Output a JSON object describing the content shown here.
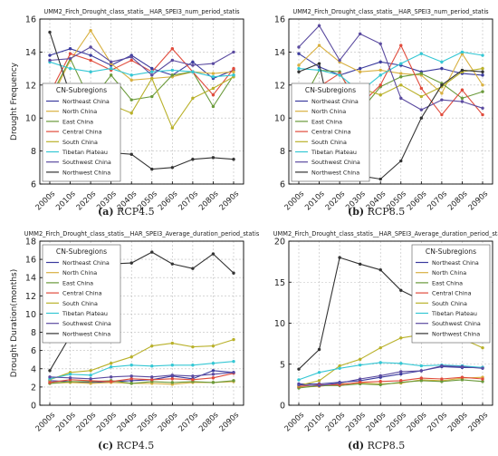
{
  "chart_data": [
    {
      "id": "a",
      "type": "line",
      "title": "UMM2_Firch_Drought_class_statis__HAR_SPEI3_num_period_statis",
      "ylabel": "Drought Frequency",
      "xlabel": "",
      "categories": [
        "2000s",
        "2010s",
        "2020s",
        "2030s",
        "2040s",
        "2050s",
        "2060s",
        "2070s",
        "2080s",
        "2090s"
      ],
      "ylim": [
        6,
        16
      ],
      "yticks": [
        6,
        8,
        10,
        12,
        14,
        16
      ],
      "grid": true,
      "legend_title": "CN-Subregions",
      "legend_position": "bottom-left",
      "series": [
        {
          "name": "Northeast China",
          "color": "#3b3b9e",
          "values": [
            13.8,
            14.2,
            13.8,
            13.2,
            13.8,
            13.0,
            12.6,
            13.4,
            12.4,
            12.9
          ]
        },
        {
          "name": "North China",
          "color": "#d8b040",
          "values": [
            11.0,
            13.5,
            15.3,
            13.3,
            12.3,
            12.4,
            12.5,
            12.8,
            12.7,
            12.8
          ]
        },
        {
          "name": "East China",
          "color": "#6a9a3a",
          "values": [
            11.2,
            13.6,
            11.0,
            12.6,
            11.1,
            11.3,
            12.6,
            12.8,
            10.7,
            12.6
          ]
        },
        {
          "name": "Central China",
          "color": "#e04b3c",
          "values": [
            11.5,
            13.9,
            13.5,
            12.9,
            13.5,
            12.8,
            14.2,
            12.8,
            11.4,
            13.0
          ]
        },
        {
          "name": "South China",
          "color": "#b9b12a",
          "values": [
            10.9,
            11.3,
            10.8,
            10.8,
            10.3,
            12.4,
            9.4,
            11.2,
            11.8,
            12.5
          ]
        },
        {
          "name": "Tibetan Plateau",
          "color": "#35c7d4",
          "values": [
            13.4,
            13.0,
            12.8,
            13.0,
            12.6,
            12.8,
            12.9,
            12.8,
            12.5,
            12.6
          ]
        },
        {
          "name": "Southwest China",
          "color": "#5b4ba0",
          "values": [
            13.5,
            13.6,
            14.3,
            13.4,
            13.7,
            12.6,
            13.5,
            13.2,
            13.3,
            14.0
          ]
        },
        {
          "name": "Northwest China",
          "color": "#333333",
          "values": [
            15.2,
            11.4,
            9.9,
            7.9,
            7.8,
            6.9,
            7.0,
            7.5,
            7.6,
            7.5
          ]
        }
      ]
    },
    {
      "id": "b",
      "type": "line",
      "title": "UMM2_Firch_Drought_class_statis__HAR_SPEI3_num_period_statis",
      "ylabel": "",
      "xlabel": "",
      "categories": [
        "2000s",
        "2010s",
        "2020s",
        "2030s",
        "2040s",
        "2050s",
        "2060s",
        "2070s",
        "2080s",
        "2090s"
      ],
      "ylim": [
        6,
        16
      ],
      "yticks": [
        6,
        8,
        10,
        12,
        14,
        16
      ],
      "grid": true,
      "legend_title": "CN-Subregions",
      "legend_position": "bottom-left",
      "series": [
        {
          "name": "Northeast China",
          "color": "#3b3b9e",
          "values": [
            13.9,
            13.1,
            12.6,
            13.0,
            13.4,
            13.2,
            12.8,
            13.0,
            12.7,
            12.6
          ]
        },
        {
          "name": "North China",
          "color": "#d8b040",
          "values": [
            13.2,
            14.4,
            13.4,
            12.8,
            12.9,
            12.7,
            12.6,
            11.5,
            13.9,
            12.0
          ]
        },
        {
          "name": "East China",
          "color": "#6a9a3a",
          "values": [
            10.6,
            12.9,
            12.8,
            10.4,
            11.9,
            12.5,
            12.7,
            12.1,
            11.2,
            11.6
          ]
        },
        {
          "name": "Central China",
          "color": "#e04b3c",
          "values": [
            10.9,
            11.9,
            12.7,
            10.8,
            12.0,
            14.4,
            11.8,
            10.2,
            11.7,
            10.2
          ]
        },
        {
          "name": "South China",
          "color": "#b9b12a",
          "values": [
            10.8,
            10.6,
            8.7,
            11.8,
            11.4,
            12.0,
            11.3,
            11.9,
            12.8,
            13.0
          ]
        },
        {
          "name": "Tibetan Plateau",
          "color": "#35c7d4",
          "values": [
            13.0,
            12.9,
            12.6,
            11.6,
            12.6,
            13.3,
            13.9,
            13.4,
            14.0,
            13.8
          ]
        },
        {
          "name": "Southwest China",
          "color": "#5b4ba0",
          "values": [
            14.3,
            15.6,
            13.5,
            15.1,
            14.5,
            11.2,
            10.5,
            11.1,
            11.0,
            10.6
          ]
        },
        {
          "name": "Northwest China",
          "color": "#333333",
          "values": [
            12.8,
            13.3,
            7.6,
            6.5,
            6.3,
            7.4,
            10.0,
            12.0,
            12.9,
            12.8
          ]
        }
      ]
    },
    {
      "id": "c",
      "type": "line",
      "title": "UMM2_Firch_Drought_class_statis__HAR_SPEI3_Average_duration_period_statis",
      "ylabel": "Drought Duration(months)",
      "xlabel": "",
      "categories": [
        "2000s",
        "2010s",
        "2020s",
        "2030s",
        "2040s",
        "2050s",
        "2060s",
        "2070s",
        "2080s",
        "2090s"
      ],
      "ylim": [
        0,
        18
      ],
      "yticks": [
        0,
        2,
        4,
        6,
        8,
        10,
        12,
        14,
        16,
        18
      ],
      "grid": true,
      "legend_title": "CN-Subregions",
      "legend_position": "top-left",
      "series": [
        {
          "name": "Northeast China",
          "color": "#3b3b9e",
          "values": [
            2.7,
            2.6,
            2.5,
            2.6,
            2.7,
            2.8,
            3.2,
            2.9,
            3.8,
            3.6
          ]
        },
        {
          "name": "North China",
          "color": "#d8b040",
          "values": [
            2.4,
            2.5,
            2.4,
            2.5,
            2.4,
            2.4,
            2.3,
            2.5,
            2.5,
            2.6
          ]
        },
        {
          "name": "East China",
          "color": "#6a9a3a",
          "values": [
            2.4,
            2.6,
            2.6,
            2.7,
            2.4,
            2.6,
            2.5,
            2.6,
            2.5,
            2.7
          ]
        },
        {
          "name": "Central China",
          "color": "#e04b3c",
          "values": [
            2.5,
            2.8,
            2.7,
            2.6,
            2.9,
            2.8,
            2.9,
            2.8,
            3.0,
            3.5
          ]
        },
        {
          "name": "South China",
          "color": "#b9b12a",
          "values": [
            2.8,
            3.6,
            3.8,
            4.6,
            5.3,
            6.5,
            6.8,
            6.4,
            6.5,
            7.2
          ]
        },
        {
          "name": "Tibetan Plateau",
          "color": "#35c7d4",
          "values": [
            2.9,
            3.4,
            3.3,
            4.2,
            4.4,
            4.3,
            4.4,
            4.4,
            4.6,
            4.8
          ]
        },
        {
          "name": "Southwest China",
          "color": "#5b4ba0",
          "values": [
            3.1,
            3.0,
            2.9,
            3.1,
            3.2,
            3.1,
            3.3,
            3.2,
            3.4,
            3.6
          ]
        },
        {
          "name": "Northwest China",
          "color": "#333333",
          "values": [
            3.8,
            7.6,
            12.2,
            15.5,
            15.6,
            16.8,
            15.5,
            15.0,
            16.6,
            14.5
          ]
        }
      ]
    },
    {
      "id": "d",
      "type": "line",
      "title": "UMM2_Firch_Drought_class_statis__HAR_SPEI3_Average_duration_period_statis",
      "ylabel": "",
      "xlabel": "",
      "categories": [
        "2000s",
        "2010s",
        "2020s",
        "2030s",
        "2040s",
        "2050s",
        "2060s",
        "2070s",
        "2080s",
        "2090s"
      ],
      "ylim": [
        0,
        20
      ],
      "yticks": [
        0,
        5,
        10,
        15,
        20
      ],
      "grid": true,
      "legend_title": "CN-Subregions",
      "legend_position": "top-right",
      "series": [
        {
          "name": "Northeast China",
          "color": "#3b3b9e",
          "values": [
            2.6,
            2.6,
            2.8,
            3.0,
            3.4,
            3.8,
            4.2,
            4.7,
            4.6,
            4.6
          ]
        },
        {
          "name": "North China",
          "color": "#d8b040",
          "values": [
            2.2,
            2.3,
            2.6,
            2.7,
            2.6,
            2.7,
            3.1,
            3.0,
            3.3,
            3.4
          ]
        },
        {
          "name": "East China",
          "color": "#6a9a3a",
          "values": [
            2.1,
            2.4,
            2.4,
            2.6,
            2.5,
            2.8,
            3.0,
            2.9,
            3.1,
            2.9
          ]
        },
        {
          "name": "Central China",
          "color": "#e04b3c",
          "values": [
            2.3,
            2.5,
            2.5,
            2.8,
            2.9,
            3.0,
            3.3,
            3.2,
            3.4,
            3.2
          ]
        },
        {
          "name": "South China",
          "color": "#b9b12a",
          "values": [
            2.4,
            3.0,
            4.8,
            5.6,
            7.0,
            8.2,
            8.6,
            8.1,
            8.1,
            7.0
          ]
        },
        {
          "name": "Tibetan Plateau",
          "color": "#35c7d4",
          "values": [
            3.1,
            4.0,
            4.5,
            4.9,
            5.2,
            5.1,
            4.8,
            4.9,
            4.8,
            4.6
          ]
        },
        {
          "name": "Southwest China",
          "color": "#5b4ba0",
          "values": [
            2.5,
            2.4,
            2.7,
            3.2,
            3.6,
            4.1,
            4.2,
            4.8,
            4.7,
            4.5
          ]
        },
        {
          "name": "Northwest China",
          "color": "#333333",
          "values": [
            4.4,
            6.8,
            18.0,
            17.2,
            16.5,
            14.0,
            12.8,
            10.6,
            9.0,
            7.8
          ]
        }
      ]
    }
  ],
  "captions": {
    "a": {
      "label": "(a)",
      "text": "RCP4.5"
    },
    "b": {
      "label": "(b)",
      "text": "RCP8.5"
    },
    "c": {
      "label": "(c)",
      "text": "RCP4.5"
    },
    "d": {
      "label": "(d)",
      "text": "RCP8.5"
    }
  }
}
